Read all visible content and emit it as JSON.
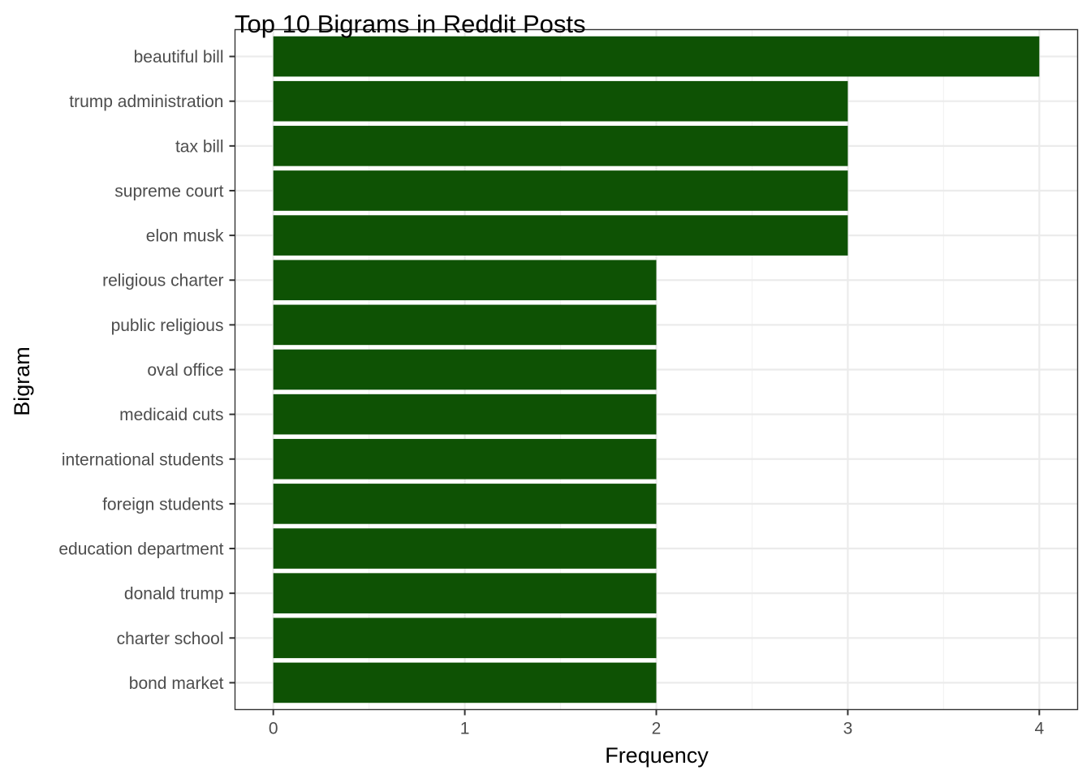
{
  "chart_data": {
    "type": "bar",
    "orientation": "horizontal",
    "title": "Top 10 Bigrams in Reddit Posts",
    "xlabel": "Frequency",
    "ylabel": "Bigram",
    "categories": [
      "beautiful bill",
      "trump administration",
      "tax bill",
      "supreme court",
      "elon musk",
      "religious charter",
      "public religious",
      "oval office",
      "medicaid cuts",
      "international students",
      "foreign students",
      "education department",
      "donald trump",
      "charter school",
      "bond market"
    ],
    "values": [
      4,
      3,
      3,
      3,
      3,
      2,
      2,
      2,
      2,
      2,
      2,
      2,
      2,
      2,
      2
    ],
    "xlim": [
      -0.2,
      4.2
    ],
    "xticks": [
      0,
      1,
      2,
      3,
      4
    ],
    "grid": true,
    "legend": "none",
    "bar_color": "#0E5204",
    "panel_border_color": "#333333",
    "grid_major_color": "#EBEBEB",
    "grid_minor_color": "#F3F3F3"
  }
}
